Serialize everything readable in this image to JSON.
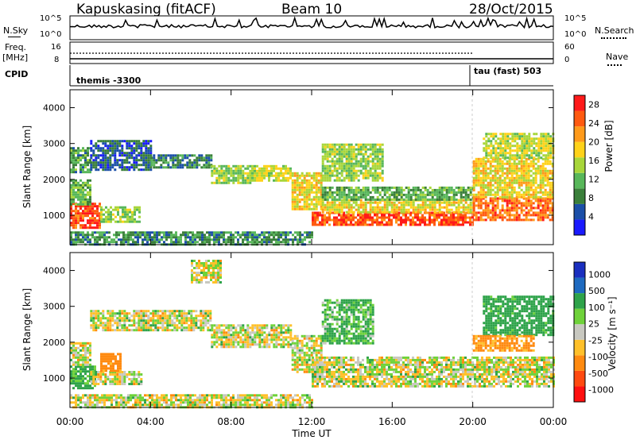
{
  "header": {
    "station": "Kapuskasing (fitACF)",
    "beam": "Beam 10",
    "date": "28/Oct/2015"
  },
  "left_labels": {
    "nsky": "N.Sky",
    "freq": "Freq.",
    "freq_unit": "[MHz]",
    "cpid": "CPID"
  },
  "right_labels": {
    "nsearch": "N.Search",
    "nave": "Nave"
  },
  "noise_axis": {
    "left_ticks": [
      "10^5",
      "10^0"
    ],
    "right_ticks": [
      "10^5",
      "10^0"
    ]
  },
  "freq_axis": {
    "left_ticks": [
      "16",
      "8"
    ],
    "right_ticks": [
      "60",
      "0"
    ]
  },
  "cpid_segments": [
    "themis -3300",
    "tau (fast) 503"
  ],
  "colors": {
    "power_scale": [
      "#1a1aff",
      "#1b4fa8",
      "#3a7f3a",
      "#58b75a",
      "#a8d63a",
      "#ffd21a",
      "#ff9a1a",
      "#ff5a10",
      "#ff1a1a"
    ],
    "velocity_scale": [
      "#1a2fbf",
      "#1e6ac0",
      "#2ea34a",
      "#6fd23a",
      "#c8c8c0",
      "#ffc02a",
      "#ff8a10",
      "#ff4a10",
      "#ff1010"
    ],
    "ground_scatter": "#c8c8c0"
  },
  "chart_data": [
    {
      "type": "heatmap",
      "title": "Power",
      "xlabel": "Time UT",
      "ylabel": "Slant Range [km]",
      "x_ticks": [
        "00:00",
        "04:00",
        "08:00",
        "12:00",
        "16:00",
        "20:00",
        "00:00"
      ],
      "xlim_hours": [
        0,
        24
      ],
      "ylim": [
        180,
        4500
      ],
      "y_ticks": [
        "1000",
        "2000",
        "3000",
        "4000"
      ],
      "colorbar": {
        "label": "Power [dB]",
        "ticks": [
          "4",
          "8",
          "12",
          "16",
          "20",
          "24",
          "28"
        ],
        "range": [
          0,
          30
        ]
      },
      "regions": [
        {
          "t0": 0.0,
          "t1": 1.5,
          "r0": 650,
          "r1": 1350,
          "value": 26
        },
        {
          "t0": 1.5,
          "t1": 3.5,
          "r0": 850,
          "r1": 1250,
          "value": 14
        },
        {
          "t0": 0.0,
          "t1": 1.0,
          "r0": 1300,
          "r1": 2000,
          "value": 12
        },
        {
          "t0": 0.0,
          "t1": 1.0,
          "r0": 2200,
          "r1": 2900,
          "value": 10
        },
        {
          "t0": 1.0,
          "t1": 4.0,
          "r0": 2300,
          "r1": 3100,
          "value": 6
        },
        {
          "t0": 4.0,
          "t1": 7.0,
          "r0": 2350,
          "r1": 2700,
          "value": 8
        },
        {
          "t0": 7.0,
          "t1": 9.0,
          "r0": 1900,
          "r1": 2400,
          "value": 14
        },
        {
          "t0": 9.0,
          "t1": 11.0,
          "r0": 2000,
          "r1": 2400,
          "value": 16
        },
        {
          "t0": 11.0,
          "t1": 12.5,
          "r0": 1200,
          "r1": 2200,
          "value": 18
        },
        {
          "t0": 12.0,
          "t1": 20.0,
          "r0": 750,
          "r1": 1100,
          "value": 26
        },
        {
          "t0": 12.5,
          "t1": 20.0,
          "r0": 1100,
          "r1": 1450,
          "value": 18
        },
        {
          "t0": 12.5,
          "t1": 20.0,
          "r0": 1450,
          "r1": 1800,
          "value": 11
        },
        {
          "t0": 20.0,
          "t1": 24.0,
          "r0": 850,
          "r1": 1500,
          "value": 24
        },
        {
          "t0": 20.0,
          "t1": 24.0,
          "r0": 1500,
          "r1": 2600,
          "value": 18
        },
        {
          "t0": 20.5,
          "t1": 24.0,
          "r0": 2600,
          "r1": 3300,
          "value": 16
        },
        {
          "t0": 12.5,
          "t1": 15.5,
          "r0": 2000,
          "r1": 3000,
          "value": 14
        },
        {
          "t0": 0.0,
          "t1": 12.0,
          "r0": 200,
          "r1": 550,
          "value": 9
        }
      ]
    },
    {
      "type": "heatmap",
      "title": "Velocity",
      "xlabel": "Time UT",
      "ylabel": "Slant Range [km]",
      "x_ticks": [
        "00:00",
        "04:00",
        "08:00",
        "12:00",
        "16:00",
        "20:00",
        "00:00"
      ],
      "xlim_hours": [
        0,
        24
      ],
      "ylim": [
        180,
        4500
      ],
      "y_ticks": [
        "1000",
        "2000",
        "3000",
        "4000"
      ],
      "colorbar": {
        "label": "Velocity [m s⁻¹]",
        "ticks": [
          "1000",
          "500",
          "100",
          "25",
          "-25",
          "-100",
          "-500",
          "-1000"
        ],
        "range": [
          -1000,
          1000
        ]
      },
      "regions": [
        {
          "t0": 0.0,
          "t1": 1.2,
          "r0": 700,
          "r1": 1350,
          "value": 150
        },
        {
          "t0": 0.0,
          "t1": 1.0,
          "r0": 1350,
          "r1": 2000,
          "value": 0
        },
        {
          "t0": 1.0,
          "t1": 3.5,
          "r0": 850,
          "r1": 1200,
          "value": 0
        },
        {
          "t0": 1.5,
          "t1": 2.5,
          "r0": 1200,
          "r1": 1700,
          "value": -200
        },
        {
          "t0": 1.0,
          "t1": 7.0,
          "r0": 2350,
          "r1": 2900,
          "value": 0
        },
        {
          "t0": 7.0,
          "t1": 11.0,
          "r0": 1900,
          "r1": 2500,
          "value": 0
        },
        {
          "t0": 11.0,
          "t1": 12.5,
          "r0": 1200,
          "r1": 2200,
          "value": 0
        },
        {
          "t0": 12.0,
          "t1": 24.0,
          "r0": 750,
          "r1": 1600,
          "value": 0
        },
        {
          "t0": 12.5,
          "t1": 15.0,
          "r0": 2000,
          "r1": 3200,
          "value": 120
        },
        {
          "t0": 20.5,
          "t1": 24.0,
          "r0": 2200,
          "r1": 3300,
          "value": 200
        },
        {
          "t0": 20.0,
          "t1": 23.0,
          "r0": 1800,
          "r1": 2200,
          "value": -150
        },
        {
          "t0": 0.0,
          "t1": 12.0,
          "r0": 200,
          "r1": 550,
          "value": 0
        },
        {
          "t0": 6.0,
          "t1": 7.5,
          "r0": 3700,
          "r1": 4300,
          "value": 0
        }
      ]
    }
  ]
}
